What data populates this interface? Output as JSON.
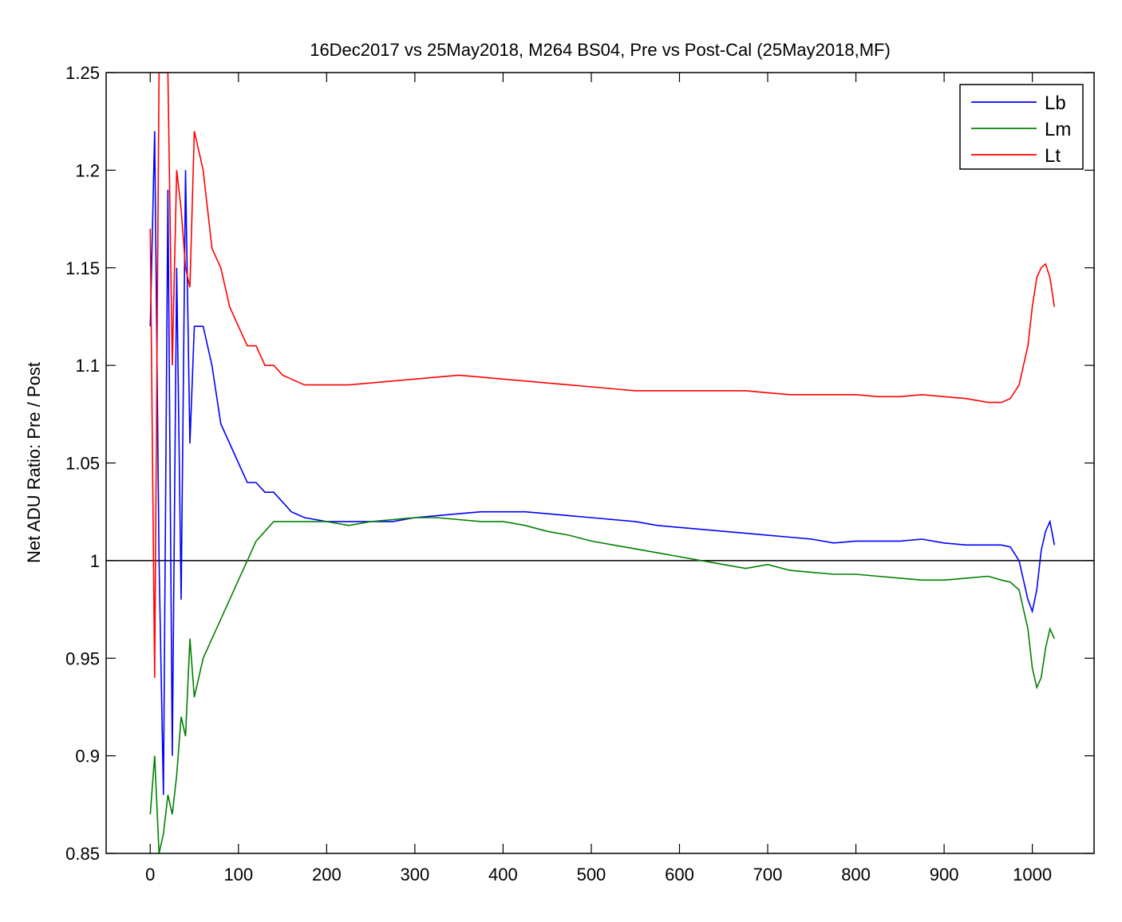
{
  "chart_data": {
    "type": "line",
    "title": "16Dec2017 vs 25May2018,  M264 BS04,  Pre vs Post-Cal  (25May2018,MF)",
    "xlabel": "",
    "ylabel": "Net ADU Ratio:  Pre / Post",
    "xlim": [
      -50,
      1070
    ],
    "ylim": [
      0.85,
      1.25
    ],
    "xticks": [
      0,
      100,
      200,
      300,
      400,
      500,
      600,
      700,
      800,
      900,
      1000
    ],
    "yticks": [
      0.85,
      0.9,
      0.95,
      1,
      1.05,
      1.1,
      1.15,
      1.2,
      1.25
    ],
    "xtick_labels": [
      "0",
      "100",
      "200",
      "300",
      "400",
      "500",
      "600",
      "700",
      "800",
      "900",
      "1000"
    ],
    "ytick_labels": [
      "0.85",
      "0.9",
      "0.95",
      "1",
      "1.05",
      "1.1",
      "1.15",
      "1.2",
      "1.25"
    ],
    "reference_line": 1.0,
    "grid": false,
    "legend_position": "top-right",
    "series": [
      {
        "name": "Lb",
        "color": "#0000ff",
        "x": [
          0,
          5,
          10,
          15,
          20,
          25,
          30,
          35,
          40,
          45,
          50,
          60,
          70,
          80,
          90,
          100,
          110,
          120,
          130,
          140,
          150,
          160,
          175,
          200,
          225,
          250,
          275,
          300,
          325,
          350,
          375,
          400,
          425,
          450,
          475,
          500,
          525,
          550,
          575,
          600,
          625,
          650,
          675,
          700,
          725,
          750,
          775,
          800,
          825,
          850,
          875,
          900,
          925,
          950,
          965,
          975,
          985,
          995,
          1000,
          1005,
          1010,
          1015,
          1020,
          1025
        ],
        "y": [
          1.12,
          1.22,
          1.0,
          0.88,
          1.19,
          0.9,
          1.15,
          0.98,
          1.2,
          1.06,
          1.12,
          1.12,
          1.1,
          1.07,
          1.06,
          1.05,
          1.04,
          1.04,
          1.035,
          1.035,
          1.03,
          1.025,
          1.022,
          1.02,
          1.02,
          1.02,
          1.02,
          1.022,
          1.023,
          1.024,
          1.025,
          1.025,
          1.025,
          1.024,
          1.023,
          1.022,
          1.021,
          1.02,
          1.018,
          1.017,
          1.016,
          1.015,
          1.014,
          1.013,
          1.012,
          1.011,
          1.009,
          1.01,
          1.01,
          1.01,
          1.011,
          1.009,
          1.008,
          1.008,
          1.008,
          1.007,
          1.0,
          0.98,
          0.974,
          0.985,
          1.005,
          1.015,
          1.02,
          1.008
        ]
      },
      {
        "name": "Lm",
        "color": "#008000",
        "x": [
          0,
          5,
          10,
          15,
          20,
          25,
          30,
          35,
          40,
          45,
          50,
          60,
          70,
          80,
          90,
          100,
          110,
          120,
          130,
          140,
          150,
          160,
          175,
          200,
          225,
          250,
          275,
          300,
          325,
          350,
          375,
          400,
          425,
          450,
          475,
          500,
          525,
          550,
          575,
          600,
          625,
          650,
          675,
          700,
          725,
          750,
          775,
          800,
          825,
          850,
          875,
          900,
          925,
          950,
          965,
          975,
          985,
          995,
          1000,
          1005,
          1010,
          1015,
          1020,
          1025
        ],
        "y": [
          0.87,
          0.9,
          0.85,
          0.86,
          0.88,
          0.87,
          0.89,
          0.92,
          0.91,
          0.96,
          0.93,
          0.95,
          0.96,
          0.97,
          0.98,
          0.99,
          1.0,
          1.01,
          1.015,
          1.02,
          1.02,
          1.02,
          1.02,
          1.02,
          1.018,
          1.02,
          1.021,
          1.022,
          1.022,
          1.021,
          1.02,
          1.02,
          1.018,
          1.015,
          1.013,
          1.01,
          1.008,
          1.006,
          1.004,
          1.002,
          1.0,
          0.998,
          0.996,
          0.998,
          0.995,
          0.994,
          0.993,
          0.993,
          0.992,
          0.991,
          0.99,
          0.99,
          0.991,
          0.992,
          0.99,
          0.989,
          0.985,
          0.965,
          0.945,
          0.935,
          0.94,
          0.955,
          0.965,
          0.96
        ]
      },
      {
        "name": "Lt",
        "color": "#ff0000",
        "x": [
          0,
          5,
          10,
          15,
          20,
          25,
          30,
          35,
          40,
          45,
          50,
          60,
          70,
          80,
          90,
          100,
          110,
          120,
          130,
          140,
          150,
          160,
          175,
          200,
          225,
          250,
          275,
          300,
          325,
          350,
          375,
          400,
          425,
          450,
          475,
          500,
          525,
          550,
          575,
          600,
          625,
          650,
          675,
          700,
          725,
          750,
          775,
          800,
          825,
          850,
          875,
          900,
          925,
          950,
          965,
          975,
          985,
          995,
          1000,
          1005,
          1010,
          1015,
          1020,
          1025
        ],
        "y": [
          1.17,
          0.94,
          1.25,
          1.25,
          1.25,
          1.1,
          1.2,
          1.18,
          1.15,
          1.14,
          1.22,
          1.2,
          1.16,
          1.15,
          1.13,
          1.12,
          1.11,
          1.11,
          1.1,
          1.1,
          1.095,
          1.093,
          1.09,
          1.09,
          1.09,
          1.091,
          1.092,
          1.093,
          1.094,
          1.095,
          1.094,
          1.093,
          1.092,
          1.091,
          1.09,
          1.089,
          1.088,
          1.087,
          1.087,
          1.087,
          1.087,
          1.087,
          1.087,
          1.086,
          1.085,
          1.085,
          1.085,
          1.085,
          1.084,
          1.084,
          1.085,
          1.084,
          1.083,
          1.081,
          1.081,
          1.083,
          1.09,
          1.11,
          1.13,
          1.145,
          1.15,
          1.152,
          1.145,
          1.13
        ]
      }
    ]
  }
}
